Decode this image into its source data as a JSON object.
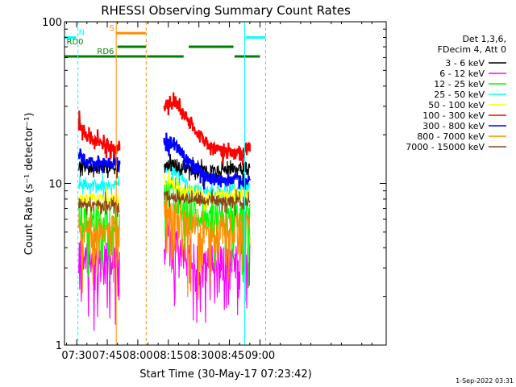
{
  "chart_data": {
    "type": "line",
    "title": "RHESSI Observing Summary Count Rates",
    "xlabel": "Start Time (30-May-17 07:23:42)",
    "ylabel": "Count Rate (s⁻¹ detector⁻¹)",
    "footer": "1-Sep-2022 03:31",
    "y_scale": "log",
    "ylim": [
      1,
      100
    ],
    "xlim_minutes": [
      444,
      602
    ],
    "x_ticks": [
      {
        "label": "07:30",
        "value": 450
      },
      {
        "label": "07:45",
        "value": 465
      },
      {
        "label": "08:00",
        "value": 480
      },
      {
        "label": "08:15",
        "value": 495
      },
      {
        "label": "08:30",
        "value": 510
      },
      {
        "label": "08:45",
        "value": 525
      },
      {
        "label": "09:00",
        "value": 540
      }
    ],
    "y_ticks": [
      {
        "label": "1",
        "value": 1
      },
      {
        "label": "10",
        "value": 10
      },
      {
        "label": "100",
        "value": 100
      }
    ],
    "legend_header": [
      "Det 1,3,6,",
      "FDecim 4, Att 0"
    ],
    "series": [
      {
        "name": "3 - 6 keV",
        "color": "#000000",
        "seg1": [
          [
            451,
            13
          ],
          [
            454,
            12.5
          ],
          [
            460,
            12.5
          ],
          [
            467,
            12.5
          ],
          [
            471,
            12.5
          ]
        ],
        "seg2": [
          [
            493,
            13
          ],
          [
            498,
            13
          ],
          [
            503,
            12.5
          ],
          [
            508,
            12
          ],
          [
            513,
            12
          ],
          [
            518,
            12
          ],
          [
            523,
            12
          ],
          [
            528,
            12.5
          ],
          [
            533,
            12.5
          ],
          [
            535,
            12.5
          ]
        ]
      },
      {
        "name": "6 - 12 keV",
        "color": "#ff00ff",
        "seg1": [
          [
            451,
            3.8
          ],
          [
            456,
            3.5
          ],
          [
            461,
            3.5
          ],
          [
            466,
            3.4
          ],
          [
            471,
            3.3
          ]
        ],
        "seg2": [
          [
            493,
            4.7
          ],
          [
            497,
            4.6
          ],
          [
            502,
            3.8
          ],
          [
            507,
            3.5
          ],
          [
            512,
            3.4
          ],
          [
            517,
            3.4
          ],
          [
            522,
            3.4
          ],
          [
            527,
            3.5
          ],
          [
            532,
            3.6
          ],
          [
            535,
            3.7
          ]
        ]
      },
      {
        "name": "12 - 25 keV",
        "color": "#00ff00",
        "seg1": [
          [
            451,
            6.6
          ],
          [
            455,
            6.2
          ],
          [
            460,
            6.5
          ],
          [
            465,
            6.0
          ],
          [
            471,
            6.0
          ]
        ],
        "seg2": [
          [
            493,
            9.0
          ],
          [
            497,
            9.2
          ],
          [
            501,
            8.5
          ],
          [
            505,
            7.0
          ],
          [
            510,
            6.6
          ],
          [
            515,
            6.6
          ],
          [
            520,
            6.6
          ],
          [
            525,
            6.6
          ],
          [
            530,
            6.6
          ],
          [
            535,
            6.6
          ]
        ]
      },
      {
        "name": "25 - 50 keV",
        "color": "#00ffff",
        "seg1": [
          [
            451,
            10
          ],
          [
            455,
            9.8
          ],
          [
            459,
            9.8
          ],
          [
            464,
            9.8
          ],
          [
            468,
            9.8
          ],
          [
            471,
            9.8
          ]
        ],
        "seg2": [
          [
            493,
            12.2
          ],
          [
            496,
            12.5
          ],
          [
            500,
            11.8
          ],
          [
            503,
            10.2
          ],
          [
            506,
            9.2
          ],
          [
            510,
            9.0
          ],
          [
            515,
            8.7
          ],
          [
            520,
            8.8
          ],
          [
            525,
            9.0
          ],
          [
            530,
            9.2
          ],
          [
            535,
            9.5
          ]
        ]
      },
      {
        "name": "50 - 100 keV",
        "color": "#ffff00",
        "seg1": [
          [
            451,
            8.0
          ],
          [
            471,
            8.0
          ]
        ],
        "seg2": [
          [
            493,
            10.5
          ],
          [
            502,
            9.0
          ],
          [
            512,
            8.5
          ],
          [
            522,
            8.5
          ],
          [
            535,
            8.5
          ]
        ]
      },
      {
        "name": "100 - 300 keV",
        "color": "#ff0000",
        "seg1": [
          [
            451,
            25
          ],
          [
            452,
            23
          ],
          [
            454,
            20
          ],
          [
            457,
            18.5
          ],
          [
            461,
            17.5
          ],
          [
            465,
            17.5
          ],
          [
            468,
            17
          ],
          [
            471,
            17
          ]
        ],
        "seg2": [
          [
            493,
            30
          ],
          [
            496,
            31
          ],
          [
            499,
            31
          ],
          [
            502,
            28
          ],
          [
            505,
            24.5
          ],
          [
            509,
            21
          ],
          [
            512,
            19
          ],
          [
            516,
            17
          ],
          [
            520,
            16
          ],
          [
            525,
            15.5
          ],
          [
            530,
            15.5
          ],
          [
            533,
            16.5
          ],
          [
            535,
            16.5
          ]
        ]
      },
      {
        "name": "300 - 800 keV",
        "color": "#0000ff",
        "seg1": [
          [
            451,
            15
          ],
          [
            454,
            14
          ],
          [
            458,
            13.5
          ],
          [
            462,
            13.5
          ],
          [
            466,
            13.5
          ],
          [
            471,
            13.5
          ]
        ],
        "seg2": [
          [
            493,
            17.5
          ],
          [
            496,
            18
          ],
          [
            499,
            17
          ],
          [
            502,
            15
          ],
          [
            505,
            13.5
          ],
          [
            509,
            12.5
          ],
          [
            514,
            11
          ],
          [
            519,
            10.5
          ],
          [
            524,
            10.5
          ],
          [
            529,
            10.5
          ],
          [
            533,
            10.5
          ],
          [
            535,
            11
          ]
        ]
      },
      {
        "name": "800 - 7000 keV",
        "color": "#ff8c00",
        "seg1": [
          [
            451,
            5.8
          ],
          [
            455,
            5.3
          ],
          [
            460,
            5.3
          ],
          [
            465,
            5.2
          ],
          [
            471,
            5.2
          ]
        ],
        "seg2": [
          [
            493,
            6.7
          ],
          [
            497,
            6.8
          ],
          [
            501,
            6.2
          ],
          [
            506,
            5.5
          ],
          [
            511,
            5.2
          ],
          [
            516,
            5.2
          ],
          [
            521,
            5.2
          ],
          [
            526,
            5.3
          ],
          [
            531,
            5.5
          ],
          [
            535,
            5.5
          ]
        ]
      },
      {
        "name": "7000 - 15000 keV",
        "color": "#8b4513",
        "seg1": [
          [
            451,
            7.5
          ],
          [
            471,
            7.2
          ]
        ],
        "seg2": [
          [
            493,
            8.3
          ],
          [
            535,
            7.6
          ]
        ]
      }
    ],
    "vertical_lines": [
      {
        "t": 450.6,
        "color": "#00ffff",
        "dash": true
      },
      {
        "t": 532.5,
        "color": "#00ffff",
        "dash": false
      },
      {
        "t": 542.8,
        "color": "#00ffff",
        "dash": true
      },
      {
        "t": 469.4,
        "color": "#ff8c00",
        "dash": false
      },
      {
        "t": 484.1,
        "color": "#ff8c00",
        "dash": true
      }
    ],
    "state_bars": [
      {
        "label": "N",
        "color": "#00ffff",
        "y": 80,
        "segments": [
          [
            444,
            449.7
          ],
          [
            533.1,
            542.8
          ]
        ],
        "label_at": 451
      },
      {
        "label": "S",
        "color": "#ff8c00",
        "y": 85,
        "segments": [
          [
            469.4,
            484.1
          ]
        ],
        "label_at": 466
      },
      {
        "label": "RD0",
        "color": "#008000",
        "y": 70,
        "segments": [
          [
            470,
            484
          ],
          [
            505,
            527
          ]
        ],
        "label_at": 445
      },
      {
        "label": "RD6",
        "color": "#008000",
        "y": 61,
        "segments": [
          [
            444,
            484
          ],
          [
            484.5,
            502.5
          ],
          [
            527.5,
            540
          ]
        ],
        "label_at": 460
      }
    ]
  }
}
